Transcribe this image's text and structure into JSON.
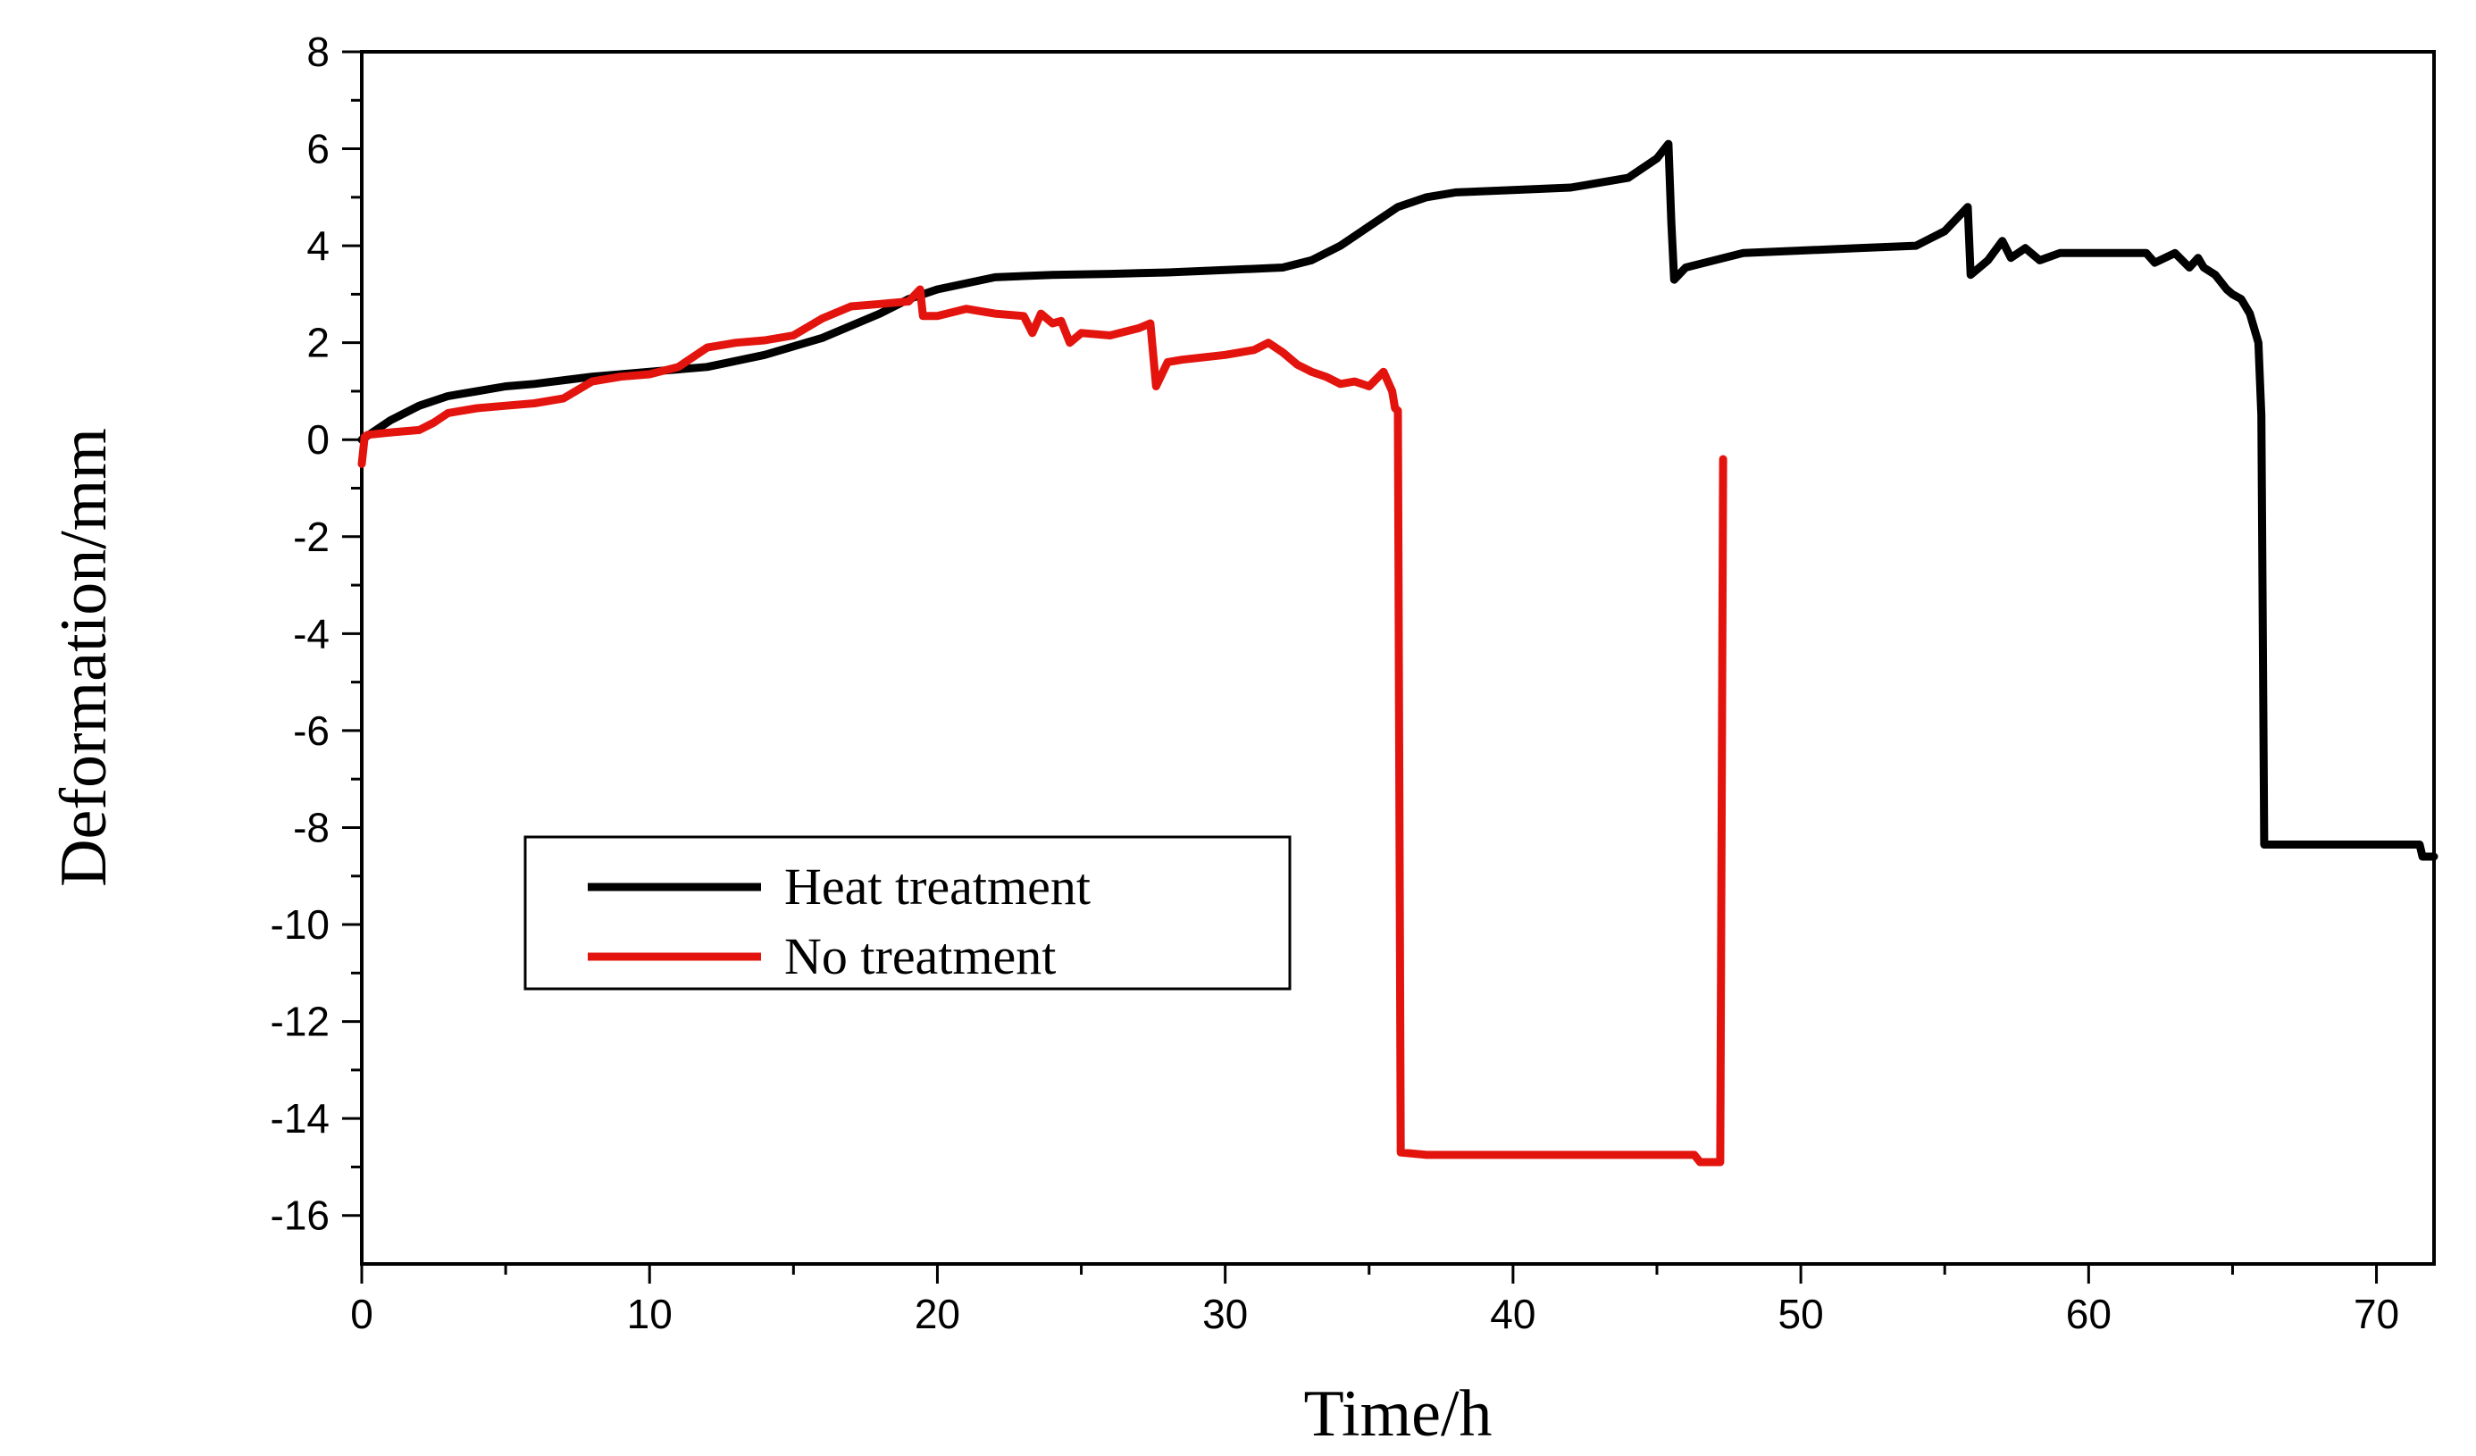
{
  "chart_data": {
    "type": "line",
    "title": "",
    "xlabel": "Time/h",
    "ylabel": "Deformation/mm",
    "xlim": [
      0,
      72
    ],
    "ylim": [
      -17,
      8
    ],
    "xticks": [
      0,
      10,
      20,
      30,
      40,
      50,
      60,
      70
    ],
    "xtick_labels": [
      "0",
      "10",
      "20",
      "30",
      "40",
      "50",
      "60",
      "70"
    ],
    "yticks": [
      8,
      6,
      4,
      2,
      0,
      -2,
      -4,
      -6,
      -8,
      -10,
      -12,
      -14,
      -16
    ],
    "ytick_labels": [
      "8",
      "6",
      "4",
      "2",
      "0",
      "-2",
      "-4",
      "-6",
      "-8",
      "-10",
      "-12",
      "-14",
      "-16"
    ],
    "grid": false,
    "legend": {
      "position": "center-left",
      "entries": [
        "Heat treatment",
        "No treatment"
      ]
    },
    "series": [
      {
        "name": "Heat treatment",
        "color": "#000000",
        "x": [
          0,
          1,
          2,
          3,
          4,
          5,
          6,
          8,
          10,
          12,
          14,
          16,
          18,
          19,
          20,
          22,
          24,
          26,
          28,
          30,
          32,
          33,
          34,
          35,
          36,
          37,
          38,
          40,
          42,
          44,
          45,
          45.4,
          45.5,
          45.6,
          46,
          48,
          50,
          52,
          54,
          55,
          55.8,
          55.9,
          56.1,
          56.5,
          57,
          57.3,
          57.8,
          58.3,
          59,
          60,
          61,
          62,
          62.3,
          63,
          63.5,
          63.8,
          64,
          64.4,
          64.8,
          65,
          65.3,
          65.6,
          65.9,
          66,
          66.1,
          66.2,
          67,
          68,
          70,
          71.5,
          71.6,
          71.8,
          72
        ],
        "values": [
          0.0,
          0.4,
          0.7,
          0.9,
          1.0,
          1.1,
          1.15,
          1.3,
          1.4,
          1.5,
          1.75,
          2.1,
          2.6,
          2.9,
          3.1,
          3.35,
          3.4,
          3.42,
          3.45,
          3.5,
          3.55,
          3.7,
          4.0,
          4.4,
          4.8,
          5.0,
          5.1,
          5.15,
          5.2,
          5.4,
          5.8,
          6.1,
          4.5,
          3.3,
          3.55,
          3.85,
          3.9,
          3.95,
          4.0,
          4.3,
          4.8,
          3.4,
          3.5,
          3.7,
          4.1,
          3.75,
          3.95,
          3.7,
          3.85,
          3.85,
          3.85,
          3.85,
          3.65,
          3.85,
          3.55,
          3.75,
          3.55,
          3.4,
          3.1,
          3.0,
          2.9,
          2.6,
          2.0,
          0.5,
          -8.35,
          -8.35,
          -8.35,
          -8.35,
          -8.35,
          -8.35,
          -8.6,
          -8.6,
          -8.6
        ]
      },
      {
        "name": "No treatment",
        "color": "#e3140e",
        "x": [
          0,
          0.1,
          0.2,
          1,
          2,
          2.5,
          3,
          4,
          5,
          6,
          7,
          8,
          9,
          10,
          11,
          12,
          13,
          14,
          15,
          16,
          17,
          18,
          19,
          19.4,
          19.5,
          20,
          21,
          21.5,
          22,
          23,
          23.3,
          23.6,
          24,
          24.3,
          24.6,
          25,
          26,
          27,
          27.4,
          27.6,
          28,
          28.5,
          30,
          31,
          31.5,
          32,
          32.5,
          33,
          33.5,
          34,
          34.5,
          35,
          35.5,
          35.8,
          35.9,
          36.0,
          36.1,
          37,
          40,
          45,
          46.3,
          46.5,
          47,
          47.2,
          47.3
        ],
        "values": [
          -0.5,
          0.05,
          0.1,
          0.15,
          0.2,
          0.35,
          0.55,
          0.65,
          0.7,
          0.75,
          0.85,
          1.2,
          1.3,
          1.35,
          1.5,
          1.9,
          2.0,
          2.05,
          2.15,
          2.5,
          2.75,
          2.8,
          2.85,
          3.1,
          2.55,
          2.55,
          2.7,
          2.65,
          2.6,
          2.55,
          2.2,
          2.6,
          2.4,
          2.45,
          2.0,
          2.2,
          2.15,
          2.3,
          2.4,
          1.1,
          1.6,
          1.65,
          1.75,
          1.85,
          2.0,
          1.8,
          1.55,
          1.4,
          1.3,
          1.15,
          1.2,
          1.1,
          1.4,
          1.0,
          0.65,
          0.6,
          -14.7,
          -14.75,
          -14.75,
          -14.75,
          -14.75,
          -14.9,
          -14.9,
          -14.9,
          -0.4
        ]
      }
    ]
  }
}
